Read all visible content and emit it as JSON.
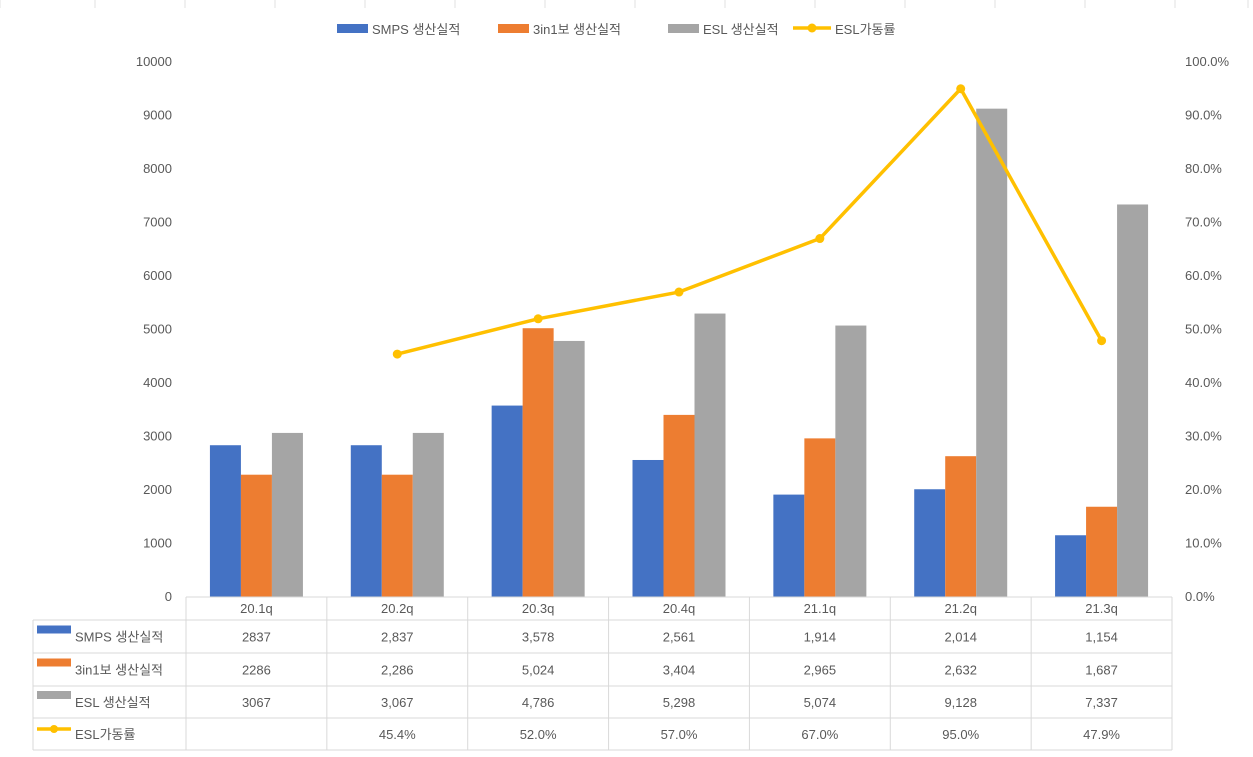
{
  "chart_data": {
    "type": "bar",
    "categories": [
      "20.1q",
      "20.2q",
      "20.3q",
      "20.4q",
      "21.1q",
      "21.2q",
      "21.3q"
    ],
    "series": [
      {
        "name": "SMPS 생산실적",
        "kind": "bar",
        "axis": "left",
        "color": "#4472C4",
        "values": [
          2837,
          2837,
          3578,
          2561,
          1914,
          2014,
          1154
        ],
        "labels": [
          "2837",
          "2,837",
          "3,578",
          "2,561",
          "1,914",
          "2,014",
          "1,154"
        ]
      },
      {
        "name": "3in1보 생산실적",
        "kind": "bar",
        "axis": "left",
        "color": "#ED7D31",
        "values": [
          2286,
          2286,
          5024,
          3404,
          2965,
          2632,
          1687
        ],
        "labels": [
          "2286",
          "2,286",
          "5,024",
          "3,404",
          "2,965",
          "2,632",
          "1,687"
        ]
      },
      {
        "name": "ESL 생산실적",
        "kind": "bar",
        "axis": "left",
        "color": "#A5A5A5",
        "values": [
          3067,
          3067,
          4786,
          5298,
          5074,
          9128,
          7337
        ],
        "labels": [
          "3067",
          "3,067",
          "4,786",
          "5,298",
          "5,074",
          "9,128",
          "7,337"
        ]
      },
      {
        "name": "ESL가동률",
        "kind": "line",
        "axis": "right",
        "color": "#FFC000",
        "values": [
          null,
          45.4,
          52.0,
          57.0,
          67.0,
          95.0,
          47.9
        ],
        "labels": [
          "",
          "45.4%",
          "52.0%",
          "57.0%",
          "67.0%",
          "95.0%",
          "47.9%"
        ]
      }
    ],
    "ylim": [
      0,
      10000
    ],
    "yticks": [
      "0",
      "1000",
      "2000",
      "3000",
      "4000",
      "5000",
      "6000",
      "7000",
      "8000",
      "9000",
      "10000"
    ],
    "y2lim": [
      0,
      100
    ],
    "y2ticks": [
      "0.0%",
      "10.0%",
      "20.0%",
      "30.0%",
      "40.0%",
      "50.0%",
      "60.0%",
      "70.0%",
      "80.0%",
      "90.0%",
      "100.0%"
    ],
    "legend_position": "top",
    "data_table": true,
    "grid": false
  }
}
